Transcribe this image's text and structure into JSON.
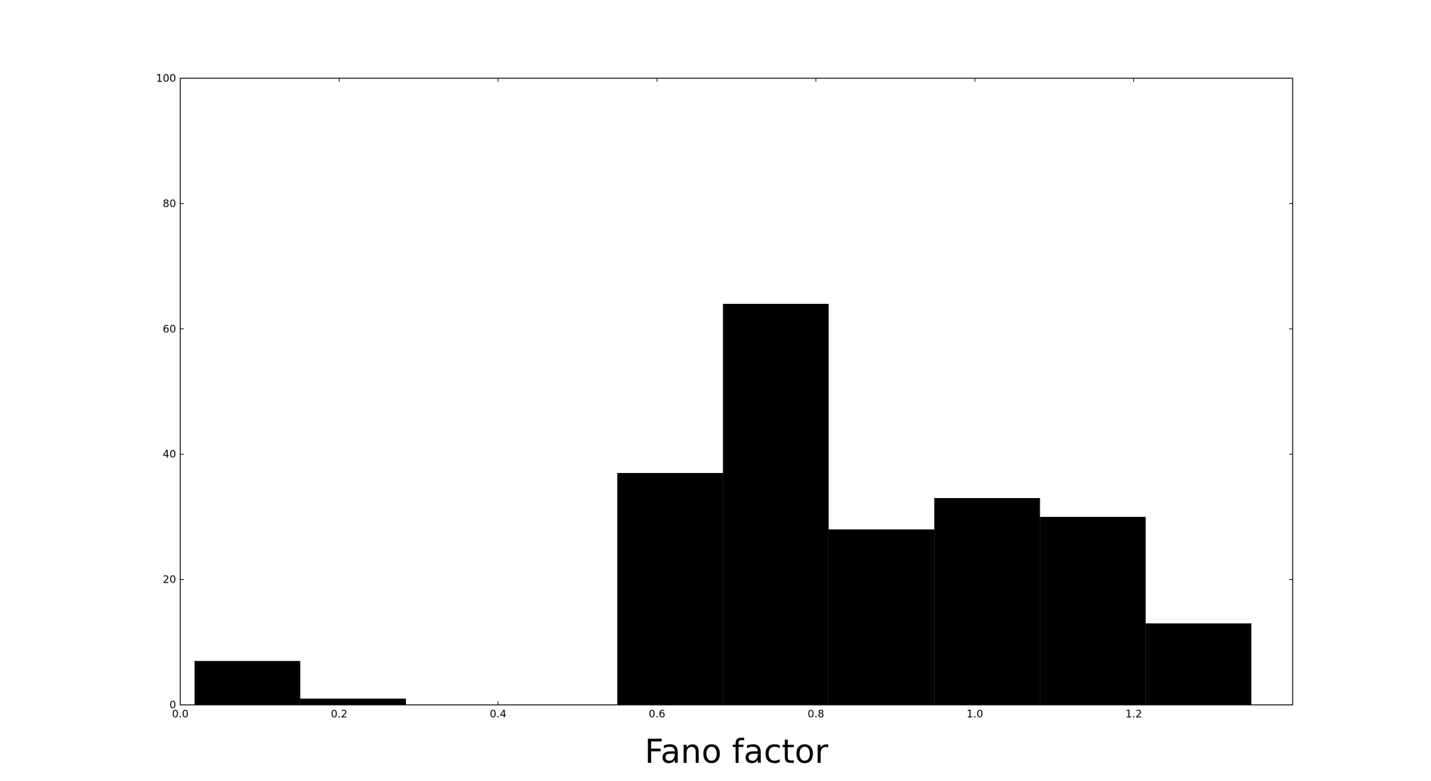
{
  "chart_data": {
    "type": "bar",
    "title": "",
    "xlabel": "Fano factor",
    "ylabel": "",
    "xlim": [
      0.0,
      1.4
    ],
    "ylim": [
      0,
      100
    ],
    "xticks": [
      0.0,
      0.2,
      0.4,
      0.6,
      0.8,
      1.0,
      1.2
    ],
    "xtick_labels": [
      "0.0",
      "0.2",
      "0.4",
      "0.6",
      "0.8",
      "1.0",
      "1.2"
    ],
    "yticks": [
      0,
      20,
      40,
      60,
      80,
      100
    ],
    "ytick_labels": [
      "0",
      "20",
      "40",
      "60",
      "80",
      "100"
    ],
    "bins": [
      {
        "x0": 0.018,
        "x1": 0.151,
        "value": 7
      },
      {
        "x0": 0.151,
        "x1": 0.284,
        "value": 1
      },
      {
        "x0": 0.284,
        "x1": 0.417,
        "value": 0
      },
      {
        "x0": 0.417,
        "x1": 0.55,
        "value": 0
      },
      {
        "x0": 0.55,
        "x1": 0.683,
        "value": 37
      },
      {
        "x0": 0.683,
        "x1": 0.816,
        "value": 64
      },
      {
        "x0": 0.816,
        "x1": 0.949,
        "value": 28
      },
      {
        "x0": 0.949,
        "x1": 1.082,
        "value": 33
      },
      {
        "x0": 1.082,
        "x1": 1.215,
        "value": 30
      },
      {
        "x0": 1.215,
        "x1": 1.348,
        "value": 13
      }
    ],
    "bar_color": "#000000",
    "grid": false,
    "legend": "none"
  }
}
